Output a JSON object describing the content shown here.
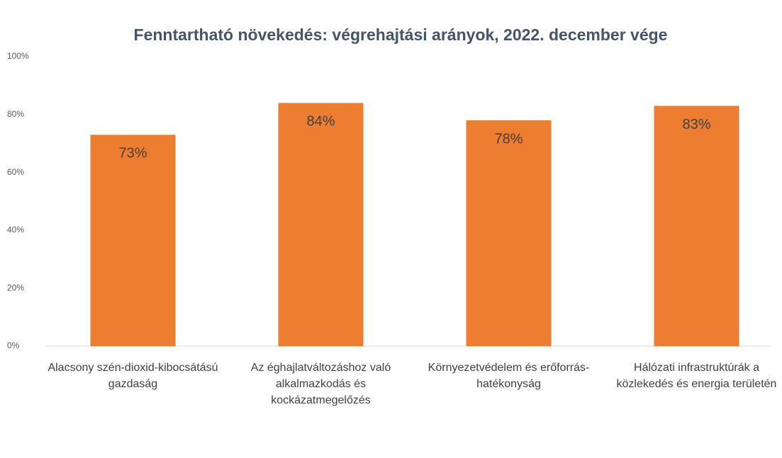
{
  "chart_data": {
    "type": "bar",
    "title": "Fenntartható növekedés: végrehajtási arányok, 2022. december vége",
    "categories": [
      "Alacsony szén-dioxid-kibocsátású gazdaság",
      "Az éghajlatváltozáshoz való alkalmazkodás és kockázatmegelőzés",
      "Környezetvédelem és erőforrás-hatékonyság",
      "Hálózati infrastruktúrák a közlekedés és energia területén"
    ],
    "values": [
      73,
      84,
      78,
      83
    ],
    "value_labels": [
      "73%",
      "84%",
      "78%",
      "83%"
    ],
    "color": "#ed7d31",
    "ylim": [
      0,
      100
    ],
    "yticks": [
      {
        "value": 0,
        "label": "0%"
      },
      {
        "value": 20,
        "label": "20%"
      },
      {
        "value": 40,
        "label": "40%"
      },
      {
        "value": 60,
        "label": "60%"
      },
      {
        "value": 80,
        "label": "80%"
      },
      {
        "value": 100,
        "label": "100%"
      }
    ],
    "grid": false
  }
}
